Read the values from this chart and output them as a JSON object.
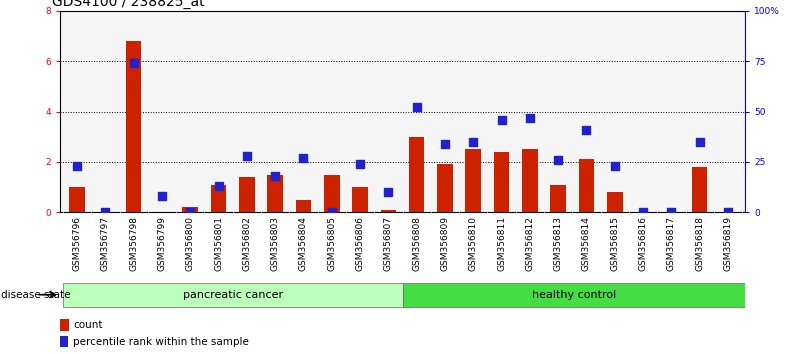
{
  "title": "GDS4100 / 238825_at",
  "samples": [
    "GSM356796",
    "GSM356797",
    "GSM356798",
    "GSM356799",
    "GSM356800",
    "GSM356801",
    "GSM356802",
    "GSM356803",
    "GSM356804",
    "GSM356805",
    "GSM356806",
    "GSM356807",
    "GSM356808",
    "GSM356809",
    "GSM356810",
    "GSM356811",
    "GSM356812",
    "GSM356813",
    "GSM356814",
    "GSM356815",
    "GSM356816",
    "GSM356817",
    "GSM356818",
    "GSM356819"
  ],
  "count_values": [
    1.0,
    0.0,
    6.8,
    0.0,
    0.2,
    1.1,
    1.4,
    1.5,
    0.5,
    1.5,
    1.0,
    0.1,
    3.0,
    1.9,
    2.5,
    2.4,
    2.5,
    1.1,
    2.1,
    0.8,
    0.0,
    0.0,
    1.8,
    0.0
  ],
  "percentile_values": [
    23,
    0,
    74,
    8,
    0,
    13,
    28,
    18,
    27,
    0,
    24,
    10,
    52,
    34,
    35,
    46,
    47,
    26,
    41,
    23,
    0,
    0,
    35,
    0
  ],
  "ylim_left": [
    0,
    8
  ],
  "ylim_right": [
    0,
    100
  ],
  "yticks_left": [
    0,
    2,
    4,
    6,
    8
  ],
  "yticks_right": [
    0,
    25,
    50,
    75,
    100
  ],
  "ytick_labels_right": [
    "0",
    "25",
    "50",
    "75",
    "100%"
  ],
  "bar_color": "#cc2200",
  "dot_color": "#2222cc",
  "pancreatic_color": "#bbffbb",
  "healthy_color": "#44dd44",
  "xtick_bg_color": "#cccccc",
  "plot_bg_color": "#f5f5f5",
  "disease_label": "disease state",
  "pancreatic_label": "pancreatic cancer",
  "healthy_label": "healthy control",
  "legend_count": "count",
  "legend_percentile": "percentile rank within the sample",
  "title_fontsize": 10,
  "tick_fontsize": 6.5,
  "label_fontsize": 8,
  "n_pancreatic": 12,
  "n_healthy": 12
}
